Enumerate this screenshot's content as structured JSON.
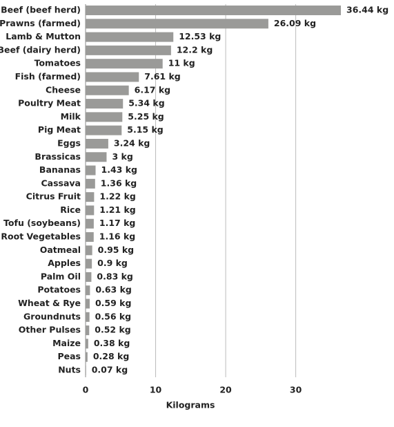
{
  "chart_data": {
    "type": "hbar",
    "x_label": "Kilograms",
    "categories": [
      "Beef (beef herd)",
      "Prawns (farmed)",
      "Lamb & Mutton",
      "Beef (dairy herd)",
      "Tomatoes",
      "Fish (farmed)",
      "Cheese",
      "Poultry Meat",
      "Milk",
      "Pig Meat",
      "Eggs",
      "Brassicas",
      "Bananas",
      "Cassava",
      "Citrus Fruit",
      "Rice",
      "Tofu (soybeans)",
      "Root Vegetables",
      "Oatmeal",
      "Apples",
      "Palm Oil",
      "Potatoes",
      "Wheat & Rye",
      "Groundnuts",
      "Other Pulses",
      "Maize",
      "Peas",
      "Nuts"
    ],
    "values": [
      36.44,
      26.09,
      12.53,
      12.2,
      11,
      7.61,
      6.17,
      5.34,
      5.25,
      5.15,
      3.24,
      3,
      1.43,
      1.36,
      1.22,
      1.21,
      1.17,
      1.16,
      0.95,
      0.9,
      0.83,
      0.63,
      0.59,
      0.56,
      0.52,
      0.38,
      0.28,
      0.07
    ],
    "value_labels": [
      "36.44 kg",
      "26.09 kg",
      "12.53 kg",
      "12.2 kg",
      "11 kg",
      "7.61 kg",
      "6.17 kg",
      "5.34 kg",
      "5.25 kg",
      "5.15 kg",
      "3.24 kg",
      "3 kg",
      "1.43 kg",
      "1.36 kg",
      "1.22 kg",
      "1.21 kg",
      "1.17 kg",
      "1.16 kg",
      "0.95 kg",
      "0.9 kg",
      "0.83 kg",
      "0.63 kg",
      "0.59 kg",
      "0.56 kg",
      "0.52 kg",
      "0.38 kg",
      "0.28 kg",
      "0.07 kg"
    ],
    "color": "#9a9a98",
    "xlim": [
      0,
      36.44
    ],
    "xticks": [
      0,
      10,
      20,
      30
    ],
    "grid": true
  }
}
